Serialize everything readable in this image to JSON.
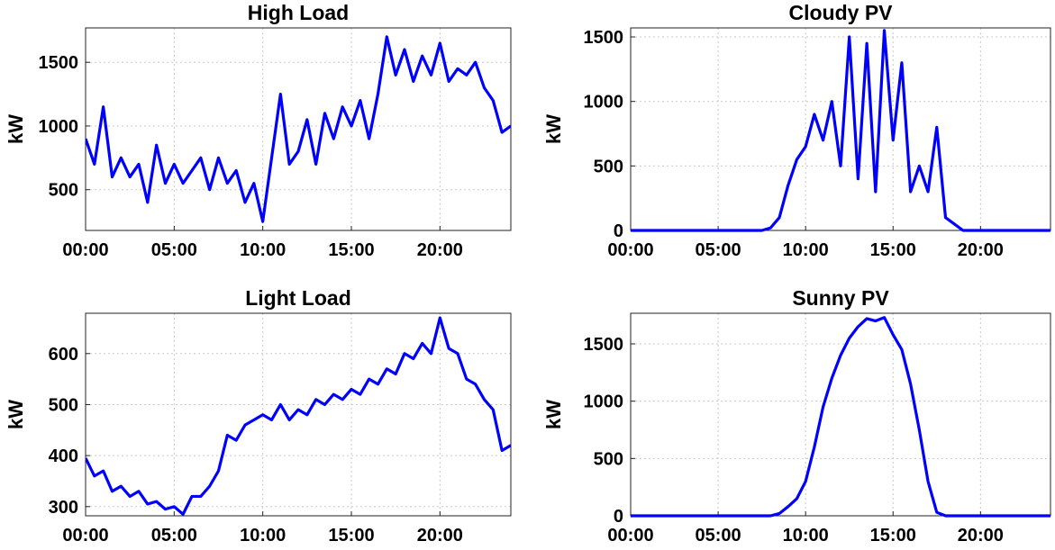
{
  "chart_data": [
    {
      "type": "line",
      "title": "High Load",
      "y_label": "kW",
      "color": "#0000ff",
      "grid": true,
      "x": [
        0,
        0.5,
        1,
        1.5,
        2,
        2.5,
        3,
        3.5,
        4,
        4.5,
        5,
        5.5,
        6,
        6.5,
        7,
        7.5,
        8,
        8.5,
        9,
        9.5,
        10,
        10.5,
        11,
        11.5,
        12,
        12.5,
        13,
        13.5,
        14,
        14.5,
        15,
        15.5,
        16,
        16.5,
        17,
        17.5,
        18,
        18.5,
        19,
        19.5,
        20,
        20.5,
        21,
        21.5,
        22,
        22.5,
        23,
        23.5,
        24
      ],
      "values": [
        900,
        700,
        1150,
        600,
        750,
        600,
        700,
        400,
        850,
        550,
        700,
        550,
        650,
        750,
        500,
        750,
        550,
        650,
        400,
        550,
        250,
        750,
        1250,
        700,
        800,
        1050,
        700,
        1100,
        900,
        1150,
        1000,
        1200,
        900,
        1250,
        1700,
        1400,
        1600,
        1350,
        1550,
        1400,
        1650,
        1350,
        1450,
        1400,
        1500,
        1300,
        1200,
        950,
        1000
      ],
      "xlim": [
        0,
        24
      ],
      "ylim": [
        180,
        1770
      ],
      "xticks": [
        {
          "value": 0,
          "label": "00:00"
        },
        {
          "value": 5,
          "label": "05:00"
        },
        {
          "value": 10,
          "label": "10:00"
        },
        {
          "value": 15,
          "label": "15:00"
        },
        {
          "value": 20,
          "label": "20:00"
        }
      ],
      "yticks": [
        500,
        1000,
        1500
      ]
    },
    {
      "type": "line",
      "title": "Cloudy PV",
      "y_label": "kW",
      "color": "#0000ff",
      "grid": true,
      "x": [
        0,
        0.5,
        1,
        1.5,
        2,
        2.5,
        3,
        3.5,
        4,
        4.5,
        5,
        5.5,
        6,
        6.5,
        7,
        7.5,
        8,
        8.5,
        9,
        9.5,
        10,
        10.5,
        11,
        11.5,
        12,
        12.5,
        13,
        13.5,
        14,
        14.5,
        15,
        15.5,
        16,
        16.5,
        17,
        17.5,
        18,
        18.5,
        19,
        19.5,
        20,
        20.5,
        21,
        21.5,
        22,
        22.5,
        23,
        23.5,
        24
      ],
      "values": [
        0,
        0,
        0,
        0,
        0,
        0,
        0,
        0,
        0,
        0,
        0,
        0,
        0,
        0,
        0,
        0,
        20,
        100,
        350,
        550,
        650,
        900,
        700,
        1000,
        500,
        1500,
        400,
        1450,
        300,
        1550,
        700,
        1300,
        300,
        500,
        300,
        800,
        100,
        50,
        0,
        0,
        0,
        0,
        0,
        0,
        0,
        0,
        0,
        0,
        0
      ],
      "xlim": [
        0,
        24
      ],
      "ylim": [
        0,
        1570
      ],
      "xticks": [
        {
          "value": 0,
          "label": "00:00"
        },
        {
          "value": 5,
          "label": "05:00"
        },
        {
          "value": 10,
          "label": "10:00"
        },
        {
          "value": 15,
          "label": "15:00"
        },
        {
          "value": 20,
          "label": "20:00"
        }
      ],
      "yticks": [
        0,
        500,
        1000,
        1500
      ]
    },
    {
      "type": "line",
      "title": "Light Load",
      "y_label": "kW",
      "color": "#0000ff",
      "grid": true,
      "x": [
        0,
        0.5,
        1,
        1.5,
        2,
        2.5,
        3,
        3.5,
        4,
        4.5,
        5,
        5.5,
        6,
        6.5,
        7,
        7.5,
        8,
        8.5,
        9,
        9.5,
        10,
        10.5,
        11,
        11.5,
        12,
        12.5,
        13,
        13.5,
        14,
        14.5,
        15,
        15.5,
        16,
        16.5,
        17,
        17.5,
        18,
        18.5,
        19,
        19.5,
        20,
        20.5,
        21,
        21.5,
        22,
        22.5,
        23,
        23.5,
        24
      ],
      "values": [
        395,
        360,
        370,
        330,
        340,
        320,
        330,
        305,
        310,
        295,
        300,
        285,
        320,
        320,
        340,
        370,
        440,
        430,
        460,
        470,
        480,
        470,
        500,
        470,
        490,
        480,
        510,
        500,
        520,
        510,
        530,
        520,
        550,
        540,
        570,
        560,
        600,
        590,
        620,
        600,
        670,
        610,
        600,
        550,
        540,
        510,
        490,
        410,
        420
      ],
      "xlim": [
        0,
        24
      ],
      "ylim": [
        282,
        679
      ],
      "xticks": [
        {
          "value": 0,
          "label": "00:00"
        },
        {
          "value": 5,
          "label": "05:00"
        },
        {
          "value": 10,
          "label": "10:00"
        },
        {
          "value": 15,
          "label": "15:00"
        },
        {
          "value": 20,
          "label": "20:00"
        }
      ],
      "yticks": [
        300,
        400,
        500,
        600
      ]
    },
    {
      "type": "line",
      "title": "Sunny PV",
      "y_label": "kW",
      "color": "#0000ff",
      "grid": true,
      "x": [
        0,
        0.5,
        1,
        1.5,
        2,
        2.5,
        3,
        3.5,
        4,
        4.5,
        5,
        5.5,
        6,
        6.5,
        7,
        7.5,
        8,
        8.5,
        9,
        9.5,
        10,
        10.5,
        11,
        11.5,
        12,
        12.5,
        13,
        13.5,
        14,
        14.5,
        15,
        15.5,
        16,
        16.5,
        17,
        17.5,
        18,
        18.5,
        19,
        19.5,
        20,
        20.5,
        21,
        21.5,
        22,
        22.5,
        23,
        23.5,
        24
      ],
      "values": [
        0,
        0,
        0,
        0,
        0,
        0,
        0,
        0,
        0,
        0,
        0,
        0,
        0,
        0,
        0,
        0,
        0,
        20,
        80,
        150,
        300,
        600,
        950,
        1200,
        1400,
        1550,
        1650,
        1720,
        1700,
        1730,
        1580,
        1450,
        1150,
        750,
        300,
        30,
        0,
        0,
        0,
        0,
        0,
        0,
        0,
        0,
        0,
        0,
        0,
        0,
        0
      ],
      "xlim": [
        0,
        24
      ],
      "ylim": [
        0,
        1767
      ],
      "xticks": [
        {
          "value": 0,
          "label": "00:00"
        },
        {
          "value": 5,
          "label": "05:00"
        },
        {
          "value": 10,
          "label": "10:00"
        },
        {
          "value": 15,
          "label": "15:00"
        },
        {
          "value": 20,
          "label": "20:00"
        }
      ],
      "yticks": [
        0,
        500,
        1000,
        1500
      ]
    }
  ]
}
